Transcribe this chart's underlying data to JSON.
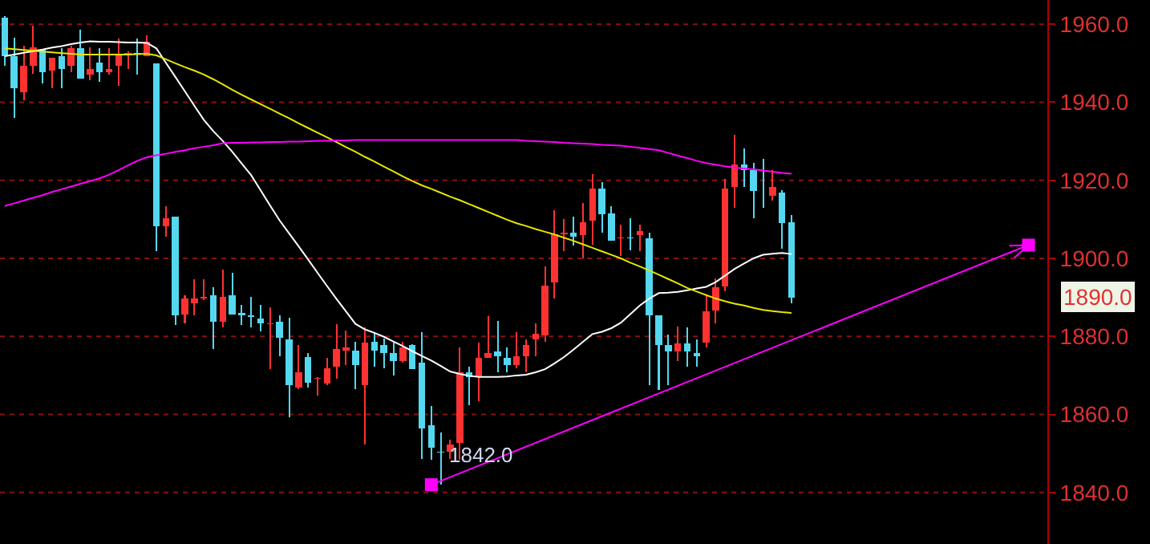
{
  "chart_data": {
    "type": "candlestick",
    "categories": [
      null,
      null,
      null,
      null,
      null,
      null,
      null,
      null,
      null,
      null,
      null,
      null,
      null,
      null,
      null,
      null,
      null,
      null,
      null,
      null,
      null,
      null,
      null,
      null,
      null,
      null,
      null,
      null,
      null,
      null,
      null,
      null,
      null,
      null,
      null,
      null,
      null,
      null,
      null,
      null,
      null,
      null,
      null,
      null,
      null,
      null,
      null,
      null,
      null,
      null,
      null,
      null,
      null,
      null,
      null,
      null,
      null,
      null,
      null,
      null,
      null,
      null,
      null,
      null,
      null,
      null,
      null,
      null,
      null,
      null,
      null,
      null,
      null,
      null,
      null,
      null,
      null,
      null,
      null,
      null,
      null,
      null,
      null,
      null
    ],
    "ohlc": [
      [
        1961.6,
        1962.0,
        1949.4,
        1951.8
      ],
      [
        1951.8,
        1956.6,
        1936.0,
        1943.6
      ],
      [
        1942.5,
        1954.5,
        1940.4,
        1949.3
      ],
      [
        1949.4,
        1959.6,
        1947.3,
        1954.1
      ],
      [
        1953.5,
        1953.5,
        1944.9,
        1947.7
      ],
      [
        1948.1,
        1951.4,
        1943.6,
        1951.4
      ],
      [
        1951.8,
        1953.8,
        1943.6,
        1948.6
      ],
      [
        1949.4,
        1954.5,
        1947.7,
        1953.8
      ],
      [
        1953.8,
        1958.6,
        1946.0,
        1946.0
      ],
      [
        1947.0,
        1954.1,
        1945.6,
        1948.6
      ],
      [
        1950.1,
        1953.8,
        1945.3,
        1947.7
      ],
      [
        1947.7,
        1953.8,
        1947.0,
        1948.6
      ],
      [
        1949.4,
        1956.3,
        1944.3,
        1952.2
      ],
      [
        1952.5,
        1953.1,
        1948.6,
        1952.6
      ],
      [
        1952.7,
        1956.3,
        1947.0,
        1952.2
      ],
      [
        1951.8,
        1957.2,
        1951.8,
        1955.5
      ],
      [
        1950.0,
        1950.0,
        1901.8,
        1908.3
      ],
      [
        1908.3,
        1913.4,
        1905.6,
        1910.3
      ],
      [
        1910.7,
        1910.7,
        1882.9,
        1885.3
      ],
      [
        1885.6,
        1890.5,
        1883.3,
        1889.7
      ],
      [
        1888.4,
        1894.6,
        1885.3,
        1889.7
      ],
      [
        1889.7,
        1894.6,
        1889.4,
        1890.1
      ],
      [
        1890.5,
        1892.6,
        1876.7,
        1883.7
      ],
      [
        1883.7,
        1897.2,
        1882.3,
        1890.1
      ],
      [
        1890.5,
        1896.3,
        1885.6,
        1885.6
      ],
      [
        1886.0,
        1888.1,
        1882.9,
        1885.3
      ],
      [
        1885.3,
        1890.1,
        1882.3,
        1884.9
      ],
      [
        1884.6,
        1888.1,
        1881.2,
        1883.3
      ],
      [
        1883.2,
        1887.4,
        1871.6,
        1883.3
      ],
      [
        1883.7,
        1885.3,
        1875.0,
        1879.6
      ],
      [
        1879.2,
        1884.7,
        1859.3,
        1867.5
      ],
      [
        1866.8,
        1877.8,
        1866.4,
        1870.7
      ],
      [
        1874.8,
        1875.7,
        1866.8,
        1868.2
      ],
      [
        1869.2,
        1869.6,
        1864.8,
        1869.3
      ],
      [
        1867.9,
        1874.4,
        1867.5,
        1871.9
      ],
      [
        1872.3,
        1883.1,
        1869.2,
        1876.8
      ],
      [
        1876.4,
        1881.5,
        1872.7,
        1877.1
      ],
      [
        1876.4,
        1878.7,
        1866.4,
        1872.7
      ],
      [
        1867.5,
        1882.3,
        1852.2,
        1878.5
      ],
      [
        1878.7,
        1881.0,
        1872.3,
        1876.4
      ],
      [
        1877.8,
        1879.5,
        1871.9,
        1875.7
      ],
      [
        1875.7,
        1878.5,
        1870.0,
        1873.7
      ],
      [
        1873.7,
        1878.7,
        1873.3,
        1877.1
      ],
      [
        1877.8,
        1878.0,
        1871.6,
        1871.6
      ],
      [
        1873.3,
        1881.0,
        1848.6,
        1856.5
      ],
      [
        1857.2,
        1862.1,
        1848.3,
        1851.4
      ],
      [
        1850.4,
        1855.4,
        1842.0,
        1850.3
      ],
      [
        1850.4,
        1853.6,
        1848.6,
        1852.2
      ],
      [
        1852.8,
        1877.1,
        1848.3,
        1870.9
      ],
      [
        1870.9,
        1872.3,
        1862.3,
        1869.6
      ],
      [
        1869.6,
        1878.5,
        1863.4,
        1874.4
      ],
      [
        1874.6,
        1885.1,
        1874.6,
        1875.7
      ],
      [
        1876.2,
        1884.0,
        1870.9,
        1875.0
      ],
      [
        1874.4,
        1877.1,
        1870.9,
        1872.7
      ],
      [
        1872.7,
        1881.0,
        1871.9,
        1875.0
      ],
      [
        1875.0,
        1879.2,
        1870.9,
        1877.8
      ],
      [
        1879.2,
        1883.3,
        1875.0,
        1880.6
      ],
      [
        1880.3,
        1897.9,
        1878.7,
        1893.1
      ],
      [
        1893.8,
        1912.4,
        1889.7,
        1906.2
      ],
      [
        1906.2,
        1910.0,
        1901.8,
        1906.6
      ],
      [
        1906.6,
        1910.7,
        1903.2,
        1905.6
      ],
      [
        1905.9,
        1914.1,
        1900.1,
        1909.3
      ],
      [
        1909.7,
        1921.6,
        1903.4,
        1917.9
      ],
      [
        1917.9,
        1919.6,
        1906.6,
        1911.4
      ],
      [
        1911.6,
        1913.4,
        1904.5,
        1904.5
      ],
      [
        1905.2,
        1908.6,
        1900.7,
        1905.3
      ],
      [
        1905.3,
        1910.3,
        1902.0,
        1905.2
      ],
      [
        1905.9,
        1908.6,
        1901.8,
        1907.0
      ],
      [
        1905.2,
        1906.6,
        1867.5,
        1885.3
      ],
      [
        1885.3,
        1885.3,
        1866.2,
        1877.8
      ],
      [
        1877.8,
        1880.5,
        1867.5,
        1876.2
      ],
      [
        1876.2,
        1882.6,
        1873.7,
        1878.2
      ],
      [
        1878.2,
        1882.3,
        1872.3,
        1876.2
      ],
      [
        1875.7,
        1879.2,
        1872.3,
        1875.0
      ],
      [
        1878.5,
        1890.8,
        1877.1,
        1886.4
      ],
      [
        1886.7,
        1894.9,
        1883.3,
        1892.5
      ],
      [
        1892.9,
        1920.3,
        1891.5,
        1917.9
      ],
      [
        1918.2,
        1931.6,
        1913.0,
        1924.1
      ],
      [
        1924.1,
        1928.2,
        1918.2,
        1922.7
      ],
      [
        1922.7,
        1924.4,
        1910.3,
        1917.3
      ],
      [
        1917.3,
        1925.5,
        1913.0,
        1917.2
      ],
      [
        1916.1,
        1922.6,
        1914.8,
        1918.2
      ],
      [
        1916.8,
        1917.5,
        1902.5,
        1909.0
      ],
      [
        1909.3,
        1911.1,
        1888.5,
        1890.0
      ]
    ],
    "colors": [
      "#54d8f0",
      "#54d8f0",
      "#ff3232",
      "#ff3232",
      "#54d8f0",
      "#ff3232",
      "#54d8f0",
      "#ff3232",
      "#54d8f0",
      "#ff3232",
      "#54d8f0",
      "#ff3232",
      "#ff3232",
      "#ff3232",
      "#54d8f0",
      "#ff3232",
      "#54d8f0",
      "#ff3232",
      "#54d8f0",
      "#ff3232",
      "#ff3232",
      "#ff3232",
      "#54d8f0",
      "#ff3232",
      "#54d8f0",
      "#54d8f0",
      "#54d8f0",
      "#54d8f0",
      "#ff3232",
      "#54d8f0",
      "#54d8f0",
      "#ff3232",
      "#54d8f0",
      "#ff3232",
      "#ff3232",
      "#ff3232",
      "#ff3232",
      "#54d8f0",
      "#ff3232",
      "#54d8f0",
      "#54d8f0",
      "#54d8f0",
      "#ff3232",
      "#54d8f0",
      "#54d8f0",
      "#54d8f0",
      "#54d8f0",
      "#ff3232",
      "#ff3232",
      "#54d8f0",
      "#ff3232",
      "#ff3232",
      "#54d8f0",
      "#54d8f0",
      "#ff3232",
      "#ff3232",
      "#ff3232",
      "#ff3232",
      "#ff3232",
      "#ff3232",
      "#54d8f0",
      "#ff3232",
      "#ff3232",
      "#54d8f0",
      "#54d8f0",
      "#ff3232",
      "#54d8f0",
      "#ff3232",
      "#54d8f0",
      "#54d8f0",
      "#54d8f0",
      "#ff3232",
      "#54d8f0",
      "#54d8f0",
      "#ff3232",
      "#ff3232",
      "#ff3232",
      "#ff3232",
      "#54d8f0",
      "#54d8f0",
      "#54d8f0",
      "#ff3232",
      "#54d8f0",
      "#54d8f0"
    ],
    "ylim": [
      1826.8,
      1966.2
    ],
    "yticks": [
      {
        "value": 1840,
        "label": "1840.0"
      },
      {
        "value": 1860,
        "label": "1860.0"
      },
      {
        "value": 1880,
        "label": "1880.0"
      },
      {
        "value": 1900,
        "label": "1900.0"
      },
      {
        "value": 1920,
        "label": "1920.0"
      },
      {
        "value": 1940,
        "label": "1940.0"
      },
      {
        "value": 1960,
        "label": "1960.0"
      }
    ],
    "grid": "y",
    "tick_labels": "y",
    "series": [
      {
        "type": "line",
        "color": "#ffffff",
        "values": [
          1951.8,
          1952.2,
          1952.7,
          1953.1,
          1953.5,
          1954.0,
          1954.4,
          1954.9,
          1955.3,
          1955.6,
          1955.5,
          1955.5,
          1955.4,
          1955.3,
          1955.3,
          1955.2,
          1953.8,
          1950.1,
          1946.5,
          1942.8,
          1939.1,
          1935.5,
          1932.6,
          1930.1,
          1927.3,
          1924.3,
          1921.3,
          1917.4,
          1913.5,
          1909.7,
          1906.4,
          1903.1,
          1899.7,
          1896.3,
          1892.9,
          1889.6,
          1886.4,
          1883.2,
          1881.8,
          1880.9,
          1879.9,
          1878.7,
          1877.5,
          1876.2,
          1875.0,
          1873.8,
          1872.4,
          1871.0,
          1870.4,
          1869.9,
          1869.6,
          1869.6,
          1869.6,
          1869.7,
          1870.0,
          1870.2,
          1870.8,
          1871.6,
          1873.1,
          1874.7,
          1876.6,
          1878.6,
          1880.6,
          1881.2,
          1882.1,
          1883.5,
          1885.7,
          1887.9,
          1889.7,
          1891.1,
          1891.2,
          1891.4,
          1891.8,
          1892.3,
          1892.7,
          1893.9,
          1895.6,
          1897.3,
          1898.7,
          1900.0,
          1900.9,
          1901.2,
          1901.4,
          1901.1
        ]
      },
      {
        "type": "line",
        "color": "#e6e600",
        "values": [
          1953.8,
          1953.6,
          1953.4,
          1953.2,
          1953.0,
          1952.8,
          1952.6,
          1952.4,
          1952.2,
          1952.2,
          1952.2,
          1952.2,
          1952.2,
          1952.2,
          1952.3,
          1952.4,
          1952.0,
          1951.0,
          1950.0,
          1949.0,
          1948.1,
          1947.1,
          1945.9,
          1944.6,
          1943.2,
          1941.9,
          1940.7,
          1939.5,
          1938.3,
          1937.1,
          1935.9,
          1934.6,
          1933.4,
          1932.2,
          1931.0,
          1929.8,
          1928.5,
          1927.3,
          1926.0,
          1924.8,
          1923.5,
          1922.3,
          1921.0,
          1919.8,
          1918.7,
          1917.8,
          1916.8,
          1915.8,
          1914.9,
          1913.9,
          1912.9,
          1911.9,
          1910.9,
          1909.9,
          1909.0,
          1908.3,
          1907.5,
          1906.8,
          1906.1,
          1905.3,
          1904.5,
          1903.6,
          1902.7,
          1901.8,
          1900.9,
          1900.0,
          1898.9,
          1897.9,
          1896.9,
          1895.8,
          1894.7,
          1893.6,
          1892.4,
          1891.5,
          1890.6,
          1889.7,
          1889.0,
          1888.4,
          1887.9,
          1887.3,
          1886.8,
          1886.5,
          1886.2,
          1886.0
        ]
      },
      {
        "type": "line",
        "color": "#ff00ff",
        "values": [
          1913.4,
          1914.1,
          1914.8,
          1915.5,
          1916.2,
          1917.0,
          1917.7,
          1918.4,
          1919.1,
          1919.8,
          1920.5,
          1921.4,
          1922.6,
          1923.8,
          1925.0,
          1925.9,
          1926.4,
          1926.8,
          1927.3,
          1927.7,
          1928.2,
          1928.6,
          1929.0,
          1929.5,
          1929.6,
          1929.6,
          1929.7,
          1929.7,
          1929.8,
          1929.8,
          1929.9,
          1929.9,
          1930.0,
          1930.1,
          1930.1,
          1930.2,
          1930.2,
          1930.3,
          1930.3,
          1930.3,
          1930.3,
          1930.3,
          1930.3,
          1930.3,
          1930.3,
          1930.3,
          1930.3,
          1930.3,
          1930.3,
          1930.3,
          1930.3,
          1930.3,
          1930.3,
          1930.3,
          1930.3,
          1930.1,
          1930.0,
          1929.9,
          1929.8,
          1929.6,
          1929.5,
          1929.4,
          1929.3,
          1929.1,
          1929.0,
          1928.9,
          1928.6,
          1928.3,
          1928.0,
          1927.7,
          1927.0,
          1926.3,
          1925.7,
          1925.0,
          1924.4,
          1924.0,
          1923.6,
          1923.3,
          1923.0,
          1922.8,
          1922.5,
          1922.2,
          1921.9,
          1921.7
        ]
      }
    ],
    "annotations": [
      "1842.0",
      "1890.0"
    ]
  }
}
